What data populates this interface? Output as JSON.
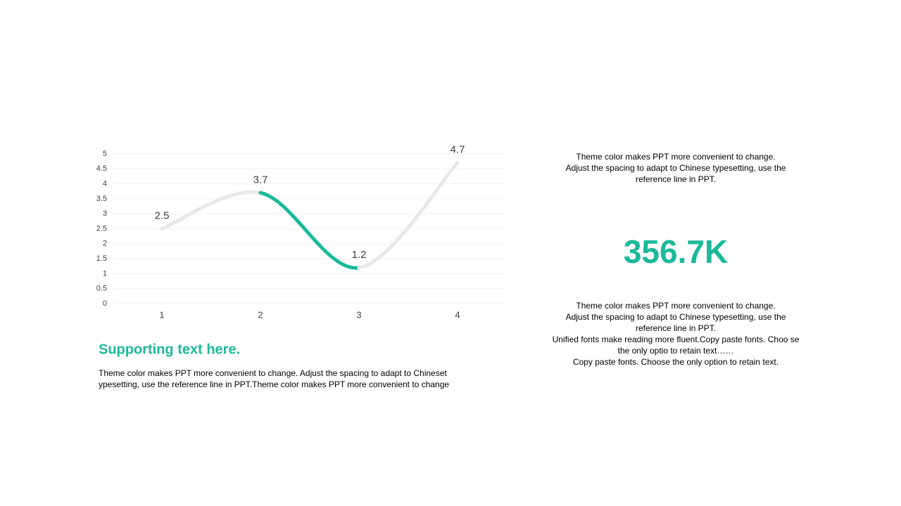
{
  "chart_data": {
    "type": "line",
    "categories": [
      "1",
      "2",
      "3",
      "4"
    ],
    "values": [
      2.5,
      3.7,
      1.2,
      4.7
    ],
    "segment_colors": [
      "#e8e8e8",
      "#1bb99a",
      "#e8e8e8"
    ],
    "ylim": [
      0,
      5
    ],
    "yticks": [
      0,
      0.5,
      1,
      1.5,
      2,
      2.5,
      3,
      3.5,
      4,
      4.5,
      5
    ],
    "grid": true
  },
  "supporting": {
    "title": "Supporting text here.",
    "body": [
      "Theme color makes PPT more convenient  to change. Adjust the spacing to adapt to Chineset",
      "ypesetting, use the reference line in PPT.Theme color makes PPT more convenient  to change"
    ]
  },
  "stat": {
    "intro": [
      "Theme  color makes PPT more convenient  to change.",
      "Adjust the spacing to adapt to Chinese typesetting, use the",
      "reference line in PPT."
    ],
    "value": "356.7K",
    "notes": [
      "Theme  color makes PPT more convenient  to change.",
      "Adjust the spacing to adapt to Chinese typesetting, use the",
      "reference line in PPT.",
      "Unified  fonts make reading more fluent.Copy paste fonts. Choo se",
      "the only optio to retain text……",
      "Copy paste  fonts. Choose the only option to retain text."
    ]
  }
}
